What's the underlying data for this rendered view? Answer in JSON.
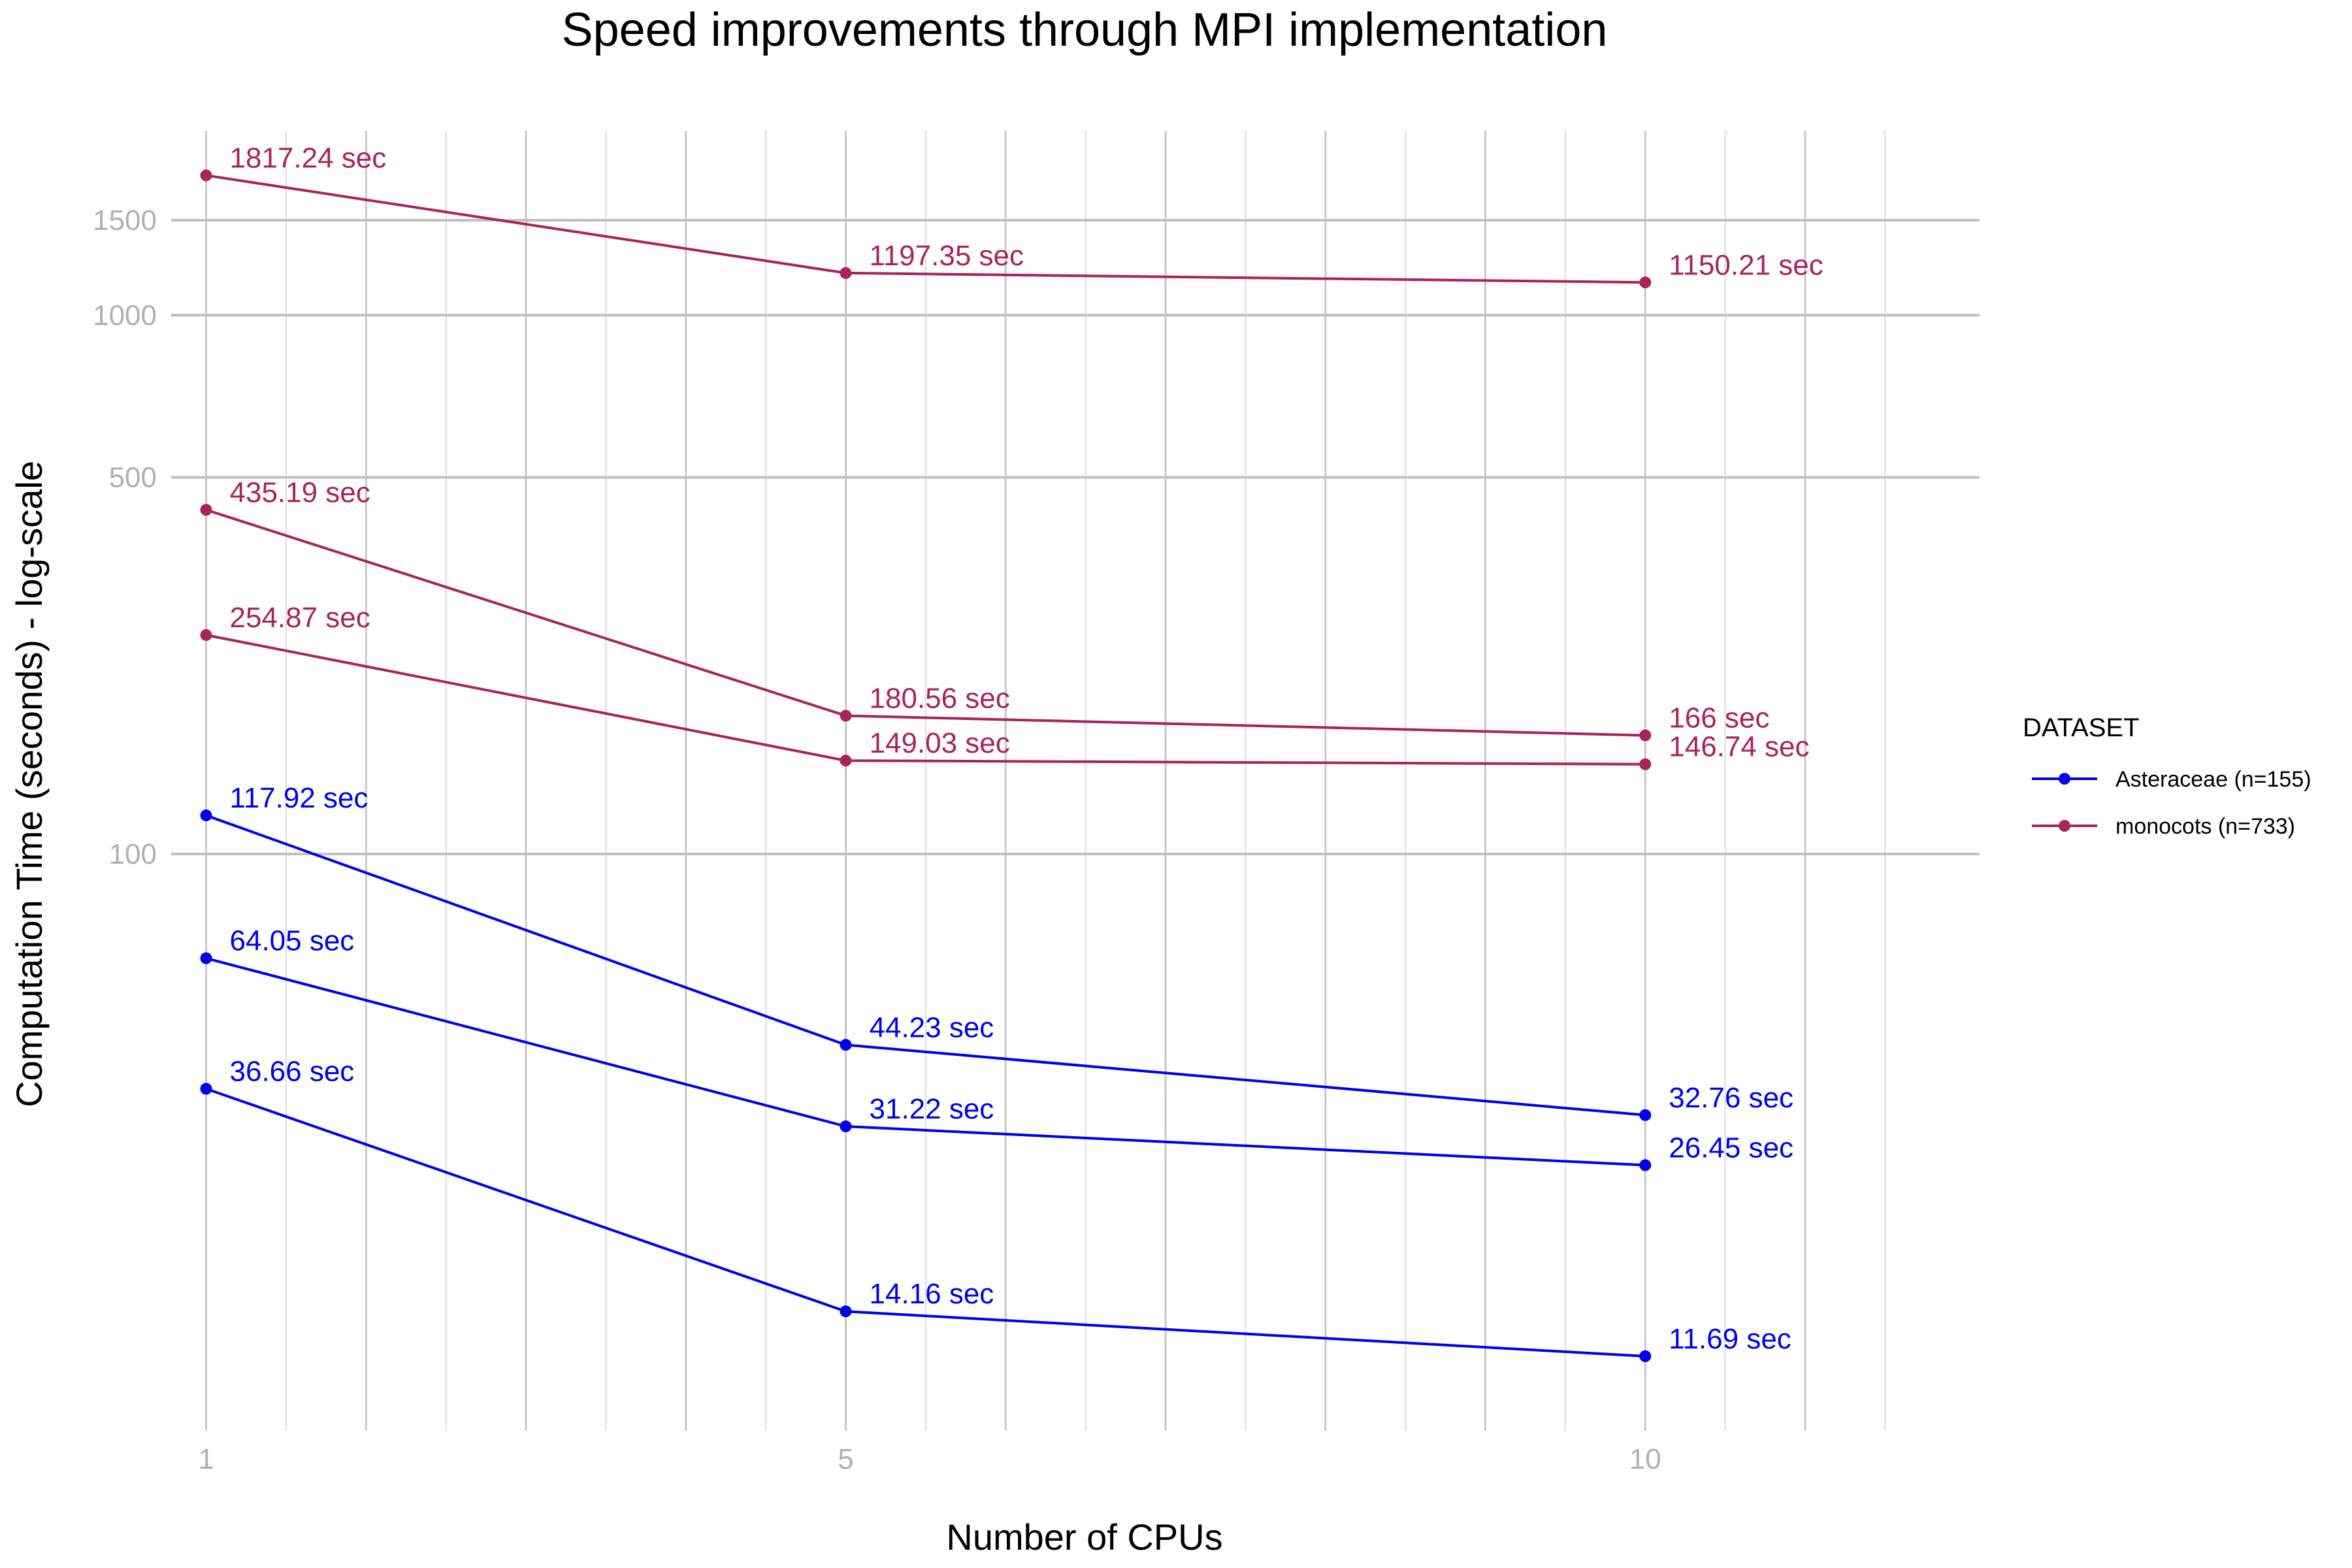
{
  "chart_data": {
    "type": "line",
    "title": "Speed improvements through MPI implementation",
    "xlabel": "Number of CPUs",
    "ylabel": "Computation Time (seconds) - log-scale",
    "y_scale": "log",
    "x_ticks": [
      "1",
      "5",
      "10"
    ],
    "y_ticks": [
      "100",
      "500",
      "1000",
      "1500"
    ],
    "xlim": [
      1,
      12
    ],
    "ylim": [
      8.5,
      2200
    ],
    "grid": true,
    "legend": {
      "title": "DATASET",
      "placement": "right",
      "entries": [
        "Asteraceae (n=155)",
        "monocots (n=733)"
      ]
    },
    "colors": {
      "Asteraceae (n=155)": "#0000ee",
      "monocots (n=733)": "#a8245a"
    },
    "series": [
      {
        "dataset": "monocots (n=733)",
        "x": [
          1,
          5,
          10
        ],
        "values": [
          1817.24,
          1197.35,
          1150.21
        ],
        "labels": [
          "1817.24  sec",
          "1197.35  sec",
          "1150.21  sec"
        ]
      },
      {
        "dataset": "monocots (n=733)",
        "x": [
          1,
          5,
          10
        ],
        "values": [
          435.19,
          180.56,
          166
        ],
        "labels": [
          "435.19  sec",
          "180.56  sec",
          "166  sec"
        ]
      },
      {
        "dataset": "monocots (n=733)",
        "x": [
          1,
          5,
          10
        ],
        "values": [
          254.87,
          149.03,
          146.74
        ],
        "labels": [
          "254.87  sec",
          "149.03  sec",
          "146.74  sec"
        ]
      },
      {
        "dataset": "Asteraceae (n=155)",
        "x": [
          1,
          5,
          10
        ],
        "values": [
          117.92,
          44.23,
          32.76
        ],
        "labels": [
          "117.92  sec",
          "44.23  sec",
          "32.76  sec"
        ]
      },
      {
        "dataset": "Asteraceae (n=155)",
        "x": [
          1,
          5,
          10
        ],
        "values": [
          64.05,
          31.22,
          26.45
        ],
        "labels": [
          "64.05  sec",
          "31.22  sec",
          "26.45  sec"
        ]
      },
      {
        "dataset": "Asteraceae (n=155)",
        "x": [
          1,
          5,
          10
        ],
        "values": [
          36.66,
          14.16,
          11.69
        ],
        "labels": [
          "36.66  sec",
          "14.16  sec",
          "11.69  sec"
        ]
      }
    ]
  }
}
